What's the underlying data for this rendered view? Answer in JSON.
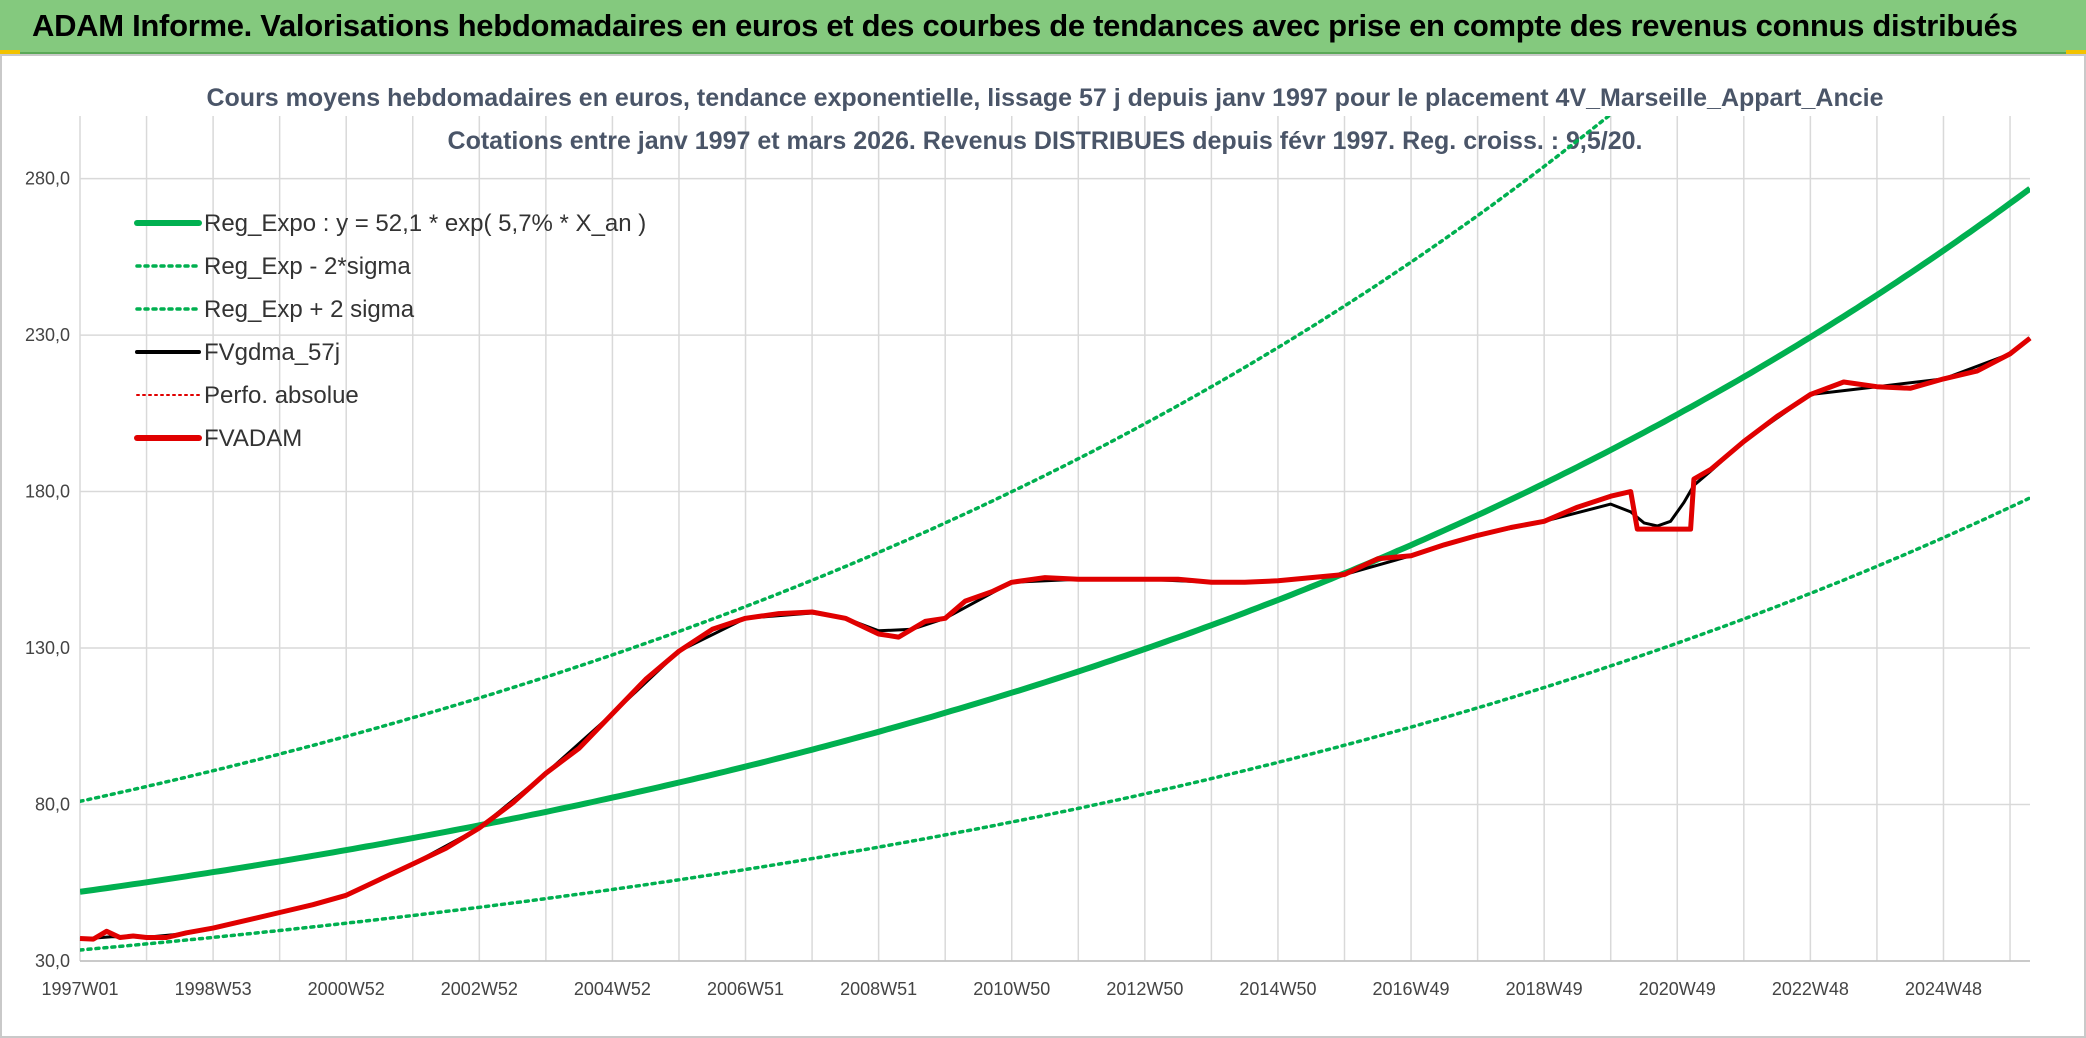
{
  "banner": {
    "title": "ADAM Informe. Valorisations hebdomadaires en euros et des courbes de tendances avec prise en compte des revenus connus distribués"
  },
  "colors": {
    "banner_bg": "#84c97e",
    "reg_expo": "#00b050",
    "fvgdma": "#000000",
    "fvadam": "#e00000",
    "perfo": "#e00000",
    "grid": "#d9d9d9"
  },
  "chart_data": {
    "type": "line",
    "title_line1": "Cours moyens hebdomadaires en euros, tendance exponentielle, lissage 57 j depuis janv 1997 pour le placement 4V_Marseille_Appart_Ancie",
    "title_line2": "Cotations entre janv 1997 et mars 2026. Revenus DISTRIBUES depuis févr 1997. Reg. croiss. : 9,5/20.",
    "xlabel": "",
    "ylabel": "",
    "ylim": [
      30,
      300
    ],
    "xlim": [
      1997.0,
      2026.3
    ],
    "y_ticks": [
      30,
      80,
      130,
      180,
      230,
      280
    ],
    "y_tick_labels": [
      "30,0",
      "80,0",
      "130,0",
      "180,0",
      "230,0",
      "280,0"
    ],
    "x_ticks": [
      {
        "label": "1997W01",
        "x": 1997.0
      },
      {
        "label": "1998W53",
        "x": 1999.0
      },
      {
        "label": "2000W52",
        "x": 2001.0
      },
      {
        "label": "2002W52",
        "x": 2003.0
      },
      {
        "label": "2004W52",
        "x": 2005.0
      },
      {
        "label": "2006W51",
        "x": 2007.0
      },
      {
        "label": "2008W51",
        "x": 2009.0
      },
      {
        "label": "2010W50",
        "x": 2011.0
      },
      {
        "label": "2012W50",
        "x": 2013.0
      },
      {
        "label": "2014W50",
        "x": 2015.0
      },
      {
        "label": "2016W49",
        "x": 2017.0
      },
      {
        "label": "2018W49",
        "x": 2019.0
      },
      {
        "label": "2020W49",
        "x": 2021.0
      },
      {
        "label": "2022W48",
        "x": 2023.0
      },
      {
        "label": "2024W48",
        "x": 2025.0
      }
    ],
    "legend": {
      "position": "top-left",
      "entries": [
        {
          "label": "Reg_Expo : y = 52,1 * exp( 5,7% *  X_an )",
          "style": "solid-thick",
          "color": "#00b050"
        },
        {
          "label": "Reg_Exp - 2*sigma",
          "style": "dotted",
          "color": "#00b050"
        },
        {
          "label": "Reg_Exp + 2 sigma",
          "style": "dotted",
          "color": "#00b050"
        },
        {
          "label": "FVgdma_57j",
          "style": "solid",
          "color": "#000000"
        },
        {
          "label": "Perfo. absolue",
          "style": "dotted-thin",
          "color": "#e00000"
        },
        {
          "label": "FVADAM",
          "style": "solid-thick",
          "color": "#e00000"
        }
      ]
    },
    "regression": {
      "a": 52.1,
      "rate": 0.057,
      "x0": 1997.0,
      "low_factor": 0.643,
      "high_factor": 1.555
    },
    "series": [
      {
        "name": "FVADAM",
        "x": [
          1997.0,
          1997.2,
          1997.4,
          1997.6,
          1997.8,
          1998.0,
          1998.3,
          1998.6,
          1999.0,
          1999.5,
          2000.0,
          2000.5,
          2001.0,
          2001.5,
          2002.0,
          2002.5,
          2003.0,
          2003.5,
          2004.0,
          2004.5,
          2005.0,
          2005.5,
          2006.0,
          2006.5,
          2007.0,
          2007.5,
          2008.0,
          2008.5,
          2009.0,
          2009.3,
          2009.7,
          2010.0,
          2010.3,
          2010.7,
          2011.0,
          2011.5,
          2012.0,
          2012.5,
          2013.0,
          2013.5,
          2014.0,
          2014.5,
          2015.0,
          2015.5,
          2016.0,
          2016.5,
          2017.0,
          2017.5,
          2018.0,
          2018.5,
          2019.0,
          2019.5,
          2020.0,
          2020.3,
          2020.4,
          2020.45,
          2020.6,
          2020.8,
          2021.0,
          2021.2,
          2021.25,
          2021.5,
          2022.0,
          2022.5,
          2023.0,
          2023.5,
          2024.0,
          2024.5,
          2025.0,
          2025.5,
          2026.0,
          2026.3
        ],
        "values": [
          37.2,
          37.0,
          39.5,
          37.5,
          38.0,
          37.5,
          37.5,
          39.0,
          40.5,
          43.0,
          45.5,
          48.0,
          51.0,
          56.0,
          61.0,
          66.0,
          72.5,
          80.5,
          90.0,
          98.0,
          109.0,
          120.0,
          129.0,
          136.0,
          139.5,
          141.0,
          141.5,
          139.5,
          134.5,
          133.5,
          138.5,
          139.5,
          145.0,
          148.0,
          151.0,
          152.5,
          152.0,
          152.0,
          152.0,
          152.0,
          151.0,
          151.0,
          151.5,
          152.5,
          153.5,
          158.5,
          159.5,
          163.0,
          166.0,
          168.5,
          170.5,
          175.0,
          178.5,
          180.0,
          168.0,
          168.0,
          168.0,
          168.0,
          168.0,
          168.0,
          184.0,
          187.0,
          196.0,
          204.0,
          211.0,
          215.0,
          213.5,
          213.0,
          216.0,
          218.5,
          224.0,
          229.0
        ]
      },
      {
        "name": "FVgdma_57j",
        "x": [
          1997.0,
          1997.5,
          1998.0,
          1998.6,
          1999.0,
          1999.5,
          2000.0,
          2001.0,
          2002.0,
          2003.0,
          2004.0,
          2005.0,
          2006.0,
          2007.0,
          2008.0,
          2008.5,
          2009.0,
          2009.5,
          2010.0,
          2011.0,
          2012.0,
          2013.0,
          2014.0,
          2015.0,
          2016.0,
          2017.0,
          2018.0,
          2019.0,
          2020.0,
          2020.3,
          2020.5,
          2020.7,
          2020.9,
          2021.1,
          2021.25,
          2021.5,
          2022.0,
          2023.0,
          2024.0,
          2025.0,
          2026.0,
          2026.3
        ],
        "values": [
          37.0,
          37.8,
          37.6,
          38.8,
          40.4,
          43.0,
          45.5,
          51.0,
          61.0,
          72.5,
          90.0,
          109.0,
          129.0,
          139.5,
          141.2,
          139.5,
          135.5,
          136.0,
          139.5,
          151.0,
          152.0,
          152.0,
          151.0,
          151.5,
          153.5,
          159.5,
          166.0,
          170.5,
          176.0,
          173.5,
          170.0,
          169.0,
          170.5,
          176.5,
          182.0,
          186.5,
          196.0,
          211.0,
          213.5,
          216.0,
          224.0,
          229.0
        ]
      }
    ]
  }
}
